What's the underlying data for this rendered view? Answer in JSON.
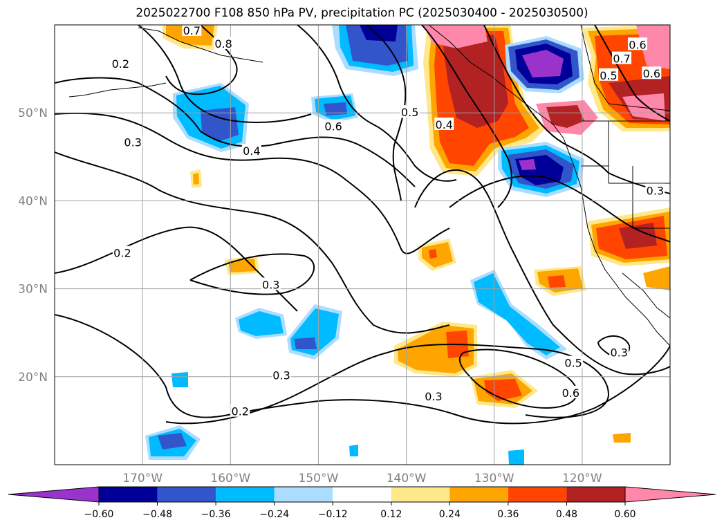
{
  "title": "2025022700 F108 850 hPa PV, precipitation PC (2025030400 - 2025030500)",
  "map": {
    "lon_range": [
      -180,
      -110
    ],
    "lat_range": [
      10,
      60
    ],
    "lat_ticks": [
      {
        "value": 20,
        "label": "20°N"
      },
      {
        "value": 30,
        "label": "30°N"
      },
      {
        "value": 40,
        "label": "40°N"
      },
      {
        "value": 50,
        "label": "50°N"
      }
    ],
    "lon_ticks": [
      {
        "value": -170,
        "label": "170°W"
      },
      {
        "value": -160,
        "label": "160°W"
      },
      {
        "value": -150,
        "label": "150°W"
      },
      {
        "value": -140,
        "label": "140°W"
      },
      {
        "value": -130,
        "label": "130°W"
      },
      {
        "value": -120,
        "label": "120°W"
      }
    ],
    "contour_labels": [
      {
        "text": "0.8",
        "lon": -160.8,
        "lat": 57.8
      },
      {
        "text": "0.7",
        "lon": -164.4,
        "lat": 59.3
      },
      {
        "text": "0.2",
        "lon": -172.5,
        "lat": 55.5
      },
      {
        "text": "0.3",
        "lon": -171.1,
        "lat": 46.6
      },
      {
        "text": "0.4",
        "lon": -157.6,
        "lat": 45.6
      },
      {
        "text": "0.6",
        "lon": -148.3,
        "lat": 48.4
      },
      {
        "text": "0.5",
        "lon": -139.6,
        "lat": 50.0
      },
      {
        "text": "0.4",
        "lon": -135.7,
        "lat": 48.6
      },
      {
        "text": "0.2",
        "lon": -172.3,
        "lat": 34.0
      },
      {
        "text": "0.3",
        "lon": -155.4,
        "lat": 30.4
      },
      {
        "text": "0.3",
        "lon": -154.2,
        "lat": 20.1
      },
      {
        "text": "0.2",
        "lon": -158.9,
        "lat": 16.0
      },
      {
        "text": "0.3",
        "lon": -136.9,
        "lat": 17.7
      },
      {
        "text": "0.5",
        "lon": -121.0,
        "lat": 21.5
      },
      {
        "text": "0.6",
        "lon": -121.3,
        "lat": 18.1
      },
      {
        "text": "0.3",
        "lon": -115.8,
        "lat": 22.7
      },
      {
        "text": "0.3",
        "lon": -111.7,
        "lat": 41.1
      },
      {
        "text": "0.6",
        "lon": -113.7,
        "lat": 57.7
      },
      {
        "text": "0.7",
        "lon": -115.5,
        "lat": 56.1
      },
      {
        "text": "0.5",
        "lon": -117.0,
        "lat": 54.2
      },
      {
        "text": "0.6",
        "lon": -112.1,
        "lat": 54.4
      }
    ]
  },
  "colorbar": {
    "levels": [
      -0.6,
      -0.48,
      -0.36,
      -0.24,
      -0.12,
      0.12,
      0.24,
      0.36,
      0.48,
      0.6
    ],
    "labels": [
      "−0.60",
      "−0.48",
      "−0.36",
      "−0.24",
      "−0.12",
      "0.12",
      "0.24",
      "0.36",
      "0.48",
      "0.60"
    ],
    "colors": [
      "#9933cc",
      "#000099",
      "#3355cc",
      "#00bbff",
      "#aaddff",
      "#ffffff",
      "#ffe88a",
      "#ffa500",
      "#ff4500",
      "#b22222",
      "#ff88aa"
    ]
  }
}
